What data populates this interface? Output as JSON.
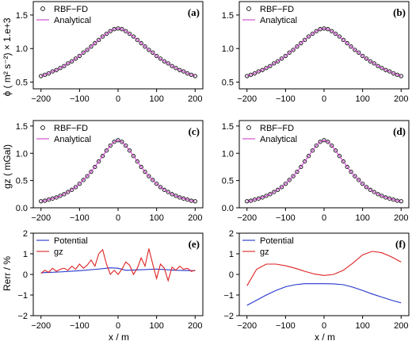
{
  "figure": {
    "ylabel_top": "ϕ ( m² s⁻²) × 1.e+3",
    "ylabel_mid": "gz ( mGal)",
    "ylabel_bottom": "Rerr / %",
    "xlabel": "x / m"
  },
  "colors": {
    "rbf_marker": "#000000",
    "analytical": "#cc44cc",
    "potential": "#2233cc",
    "gz": "#dd2222"
  },
  "chart_data": [
    {
      "id": "a",
      "type": "line",
      "panel_label": "(a)",
      "xlim": [
        -220,
        220
      ],
      "ylim": [
        0.4,
        1.7
      ],
      "xticks": [
        -200,
        -100,
        0,
        100,
        200
      ],
      "yticks": [
        0.5,
        1.0,
        1.5
      ],
      "legend": [
        "RBF−FD",
        "Analytical"
      ],
      "series": [
        {
          "name": "RBF−FD",
          "style": "markers",
          "x": [
            -200,
            -190,
            -180,
            -170,
            -160,
            -150,
            -140,
            -130,
            -120,
            -110,
            -100,
            -90,
            -80,
            -70,
            -60,
            -50,
            -40,
            -30,
            -20,
            -10,
            0,
            10,
            20,
            30,
            40,
            50,
            60,
            70,
            80,
            90,
            100,
            110,
            120,
            130,
            140,
            150,
            160,
            170,
            180,
            190,
            200
          ],
          "y": [
            0.59,
            0.61,
            0.63,
            0.66,
            0.68,
            0.71,
            0.74,
            0.78,
            0.81,
            0.85,
            0.89,
            0.94,
            0.98,
            1.03,
            1.08,
            1.13,
            1.18,
            1.22,
            1.26,
            1.29,
            1.3,
            1.29,
            1.26,
            1.22,
            1.18,
            1.13,
            1.08,
            1.03,
            0.98,
            0.94,
            0.89,
            0.85,
            0.81,
            0.78,
            0.74,
            0.71,
            0.68,
            0.66,
            0.63,
            0.61,
            0.59
          ]
        },
        {
          "name": "Analytical",
          "style": "line",
          "x": [
            -200,
            -190,
            -180,
            -170,
            -160,
            -150,
            -140,
            -130,
            -120,
            -110,
            -100,
            -90,
            -80,
            -70,
            -60,
            -50,
            -40,
            -30,
            -20,
            -10,
            0,
            10,
            20,
            30,
            40,
            50,
            60,
            70,
            80,
            90,
            100,
            110,
            120,
            130,
            140,
            150,
            160,
            170,
            180,
            190,
            200
          ],
          "y": [
            0.59,
            0.61,
            0.63,
            0.66,
            0.68,
            0.71,
            0.74,
            0.78,
            0.81,
            0.85,
            0.89,
            0.94,
            0.98,
            1.03,
            1.08,
            1.13,
            1.18,
            1.22,
            1.26,
            1.29,
            1.3,
            1.29,
            1.26,
            1.22,
            1.18,
            1.13,
            1.08,
            1.03,
            0.98,
            0.94,
            0.89,
            0.85,
            0.81,
            0.78,
            0.74,
            0.71,
            0.68,
            0.66,
            0.63,
            0.61,
            0.59
          ]
        }
      ]
    },
    {
      "id": "b",
      "type": "line",
      "panel_label": "(b)",
      "xlim": [
        -220,
        220
      ],
      "ylim": [
        0.4,
        1.7
      ],
      "xticks": [
        -200,
        -100,
        0,
        100,
        200
      ],
      "yticks": [
        0.5,
        1.0,
        1.5
      ],
      "legend": [
        "RBF−FD",
        "Analytical"
      ],
      "series": [
        {
          "name": "RBF−FD",
          "style": "markers",
          "x": [
            -200,
            -190,
            -180,
            -170,
            -160,
            -150,
            -140,
            -130,
            -120,
            -110,
            -100,
            -90,
            -80,
            -70,
            -60,
            -50,
            -40,
            -30,
            -20,
            -10,
            0,
            10,
            20,
            30,
            40,
            50,
            60,
            70,
            80,
            90,
            100,
            110,
            120,
            130,
            140,
            150,
            160,
            170,
            180,
            190,
            200
          ],
          "y": [
            0.59,
            0.61,
            0.63,
            0.66,
            0.68,
            0.71,
            0.74,
            0.78,
            0.81,
            0.85,
            0.89,
            0.94,
            0.98,
            1.03,
            1.08,
            1.13,
            1.18,
            1.22,
            1.26,
            1.29,
            1.3,
            1.29,
            1.26,
            1.22,
            1.18,
            1.13,
            1.08,
            1.03,
            0.98,
            0.94,
            0.89,
            0.85,
            0.81,
            0.78,
            0.74,
            0.71,
            0.68,
            0.66,
            0.63,
            0.61,
            0.59
          ]
        },
        {
          "name": "Analytical",
          "style": "line",
          "x": [
            -200,
            -190,
            -180,
            -170,
            -160,
            -150,
            -140,
            -130,
            -120,
            -110,
            -100,
            -90,
            -80,
            -70,
            -60,
            -50,
            -40,
            -30,
            -20,
            -10,
            0,
            10,
            20,
            30,
            40,
            50,
            60,
            70,
            80,
            90,
            100,
            110,
            120,
            130,
            140,
            150,
            160,
            170,
            180,
            190,
            200
          ],
          "y": [
            0.59,
            0.61,
            0.63,
            0.66,
            0.68,
            0.71,
            0.74,
            0.78,
            0.81,
            0.85,
            0.89,
            0.94,
            0.98,
            1.03,
            1.08,
            1.13,
            1.18,
            1.22,
            1.26,
            1.29,
            1.3,
            1.29,
            1.26,
            1.22,
            1.18,
            1.13,
            1.08,
            1.03,
            0.98,
            0.94,
            0.89,
            0.85,
            0.81,
            0.78,
            0.74,
            0.71,
            0.68,
            0.66,
            0.63,
            0.61,
            0.59
          ]
        }
      ]
    },
    {
      "id": "c",
      "type": "line",
      "panel_label": "(c)",
      "xlim": [
        -220,
        220
      ],
      "ylim": [
        0.0,
        1.6
      ],
      "xticks": [
        -200,
        -100,
        0,
        100,
        200
      ],
      "yticks": [
        0.0,
        0.5,
        1.0,
        1.5
      ],
      "legend": [
        "RBF−FD",
        "Analytical"
      ],
      "series": [
        {
          "name": "RBF−FD",
          "style": "markers",
          "x": [
            -200,
            -190,
            -180,
            -170,
            -160,
            -150,
            -140,
            -130,
            -120,
            -110,
            -100,
            -90,
            -80,
            -70,
            -60,
            -50,
            -40,
            -30,
            -20,
            -10,
            0,
            10,
            20,
            30,
            40,
            50,
            60,
            70,
            80,
            90,
            100,
            110,
            120,
            130,
            140,
            150,
            160,
            170,
            180,
            190,
            200
          ],
          "y": [
            0.12,
            0.13,
            0.15,
            0.17,
            0.19,
            0.22,
            0.25,
            0.29,
            0.33,
            0.38,
            0.44,
            0.51,
            0.58,
            0.66,
            0.75,
            0.85,
            0.95,
            1.05,
            1.14,
            1.21,
            1.24,
            1.21,
            1.14,
            1.05,
            0.95,
            0.85,
            0.75,
            0.66,
            0.58,
            0.51,
            0.44,
            0.38,
            0.33,
            0.29,
            0.25,
            0.22,
            0.19,
            0.17,
            0.15,
            0.13,
            0.12
          ]
        },
        {
          "name": "Analytical",
          "style": "line",
          "x": [
            -200,
            -190,
            -180,
            -170,
            -160,
            -150,
            -140,
            -130,
            -120,
            -110,
            -100,
            -90,
            -80,
            -70,
            -60,
            -50,
            -40,
            -30,
            -20,
            -10,
            0,
            10,
            20,
            30,
            40,
            50,
            60,
            70,
            80,
            90,
            100,
            110,
            120,
            130,
            140,
            150,
            160,
            170,
            180,
            190,
            200
          ],
          "y": [
            0.12,
            0.13,
            0.15,
            0.17,
            0.19,
            0.22,
            0.25,
            0.29,
            0.33,
            0.38,
            0.44,
            0.51,
            0.58,
            0.66,
            0.75,
            0.85,
            0.95,
            1.05,
            1.14,
            1.21,
            1.24,
            1.21,
            1.14,
            1.05,
            0.95,
            0.85,
            0.75,
            0.66,
            0.58,
            0.51,
            0.44,
            0.38,
            0.33,
            0.29,
            0.25,
            0.22,
            0.19,
            0.17,
            0.15,
            0.13,
            0.12
          ]
        }
      ]
    },
    {
      "id": "d",
      "type": "line",
      "panel_label": "(d)",
      "xlim": [
        -220,
        220
      ],
      "ylim": [
        0.0,
        1.6
      ],
      "xticks": [
        -200,
        -100,
        0,
        100,
        200
      ],
      "yticks": [
        0.0,
        0.5,
        1.0,
        1.5
      ],
      "legend": [
        "RBF−FD",
        "Analytical"
      ],
      "series": [
        {
          "name": "RBF−FD",
          "style": "markers",
          "x": [
            -200,
            -190,
            -180,
            -170,
            -160,
            -150,
            -140,
            -130,
            -120,
            -110,
            -100,
            -90,
            -80,
            -70,
            -60,
            -50,
            -40,
            -30,
            -20,
            -10,
            0,
            10,
            20,
            30,
            40,
            50,
            60,
            70,
            80,
            90,
            100,
            110,
            120,
            130,
            140,
            150,
            160,
            170,
            180,
            190,
            200
          ],
          "y": [
            0.12,
            0.13,
            0.15,
            0.17,
            0.19,
            0.22,
            0.25,
            0.29,
            0.33,
            0.38,
            0.44,
            0.51,
            0.58,
            0.66,
            0.75,
            0.85,
            0.95,
            1.05,
            1.14,
            1.21,
            1.24,
            1.21,
            1.14,
            1.05,
            0.95,
            0.85,
            0.75,
            0.66,
            0.58,
            0.51,
            0.44,
            0.38,
            0.33,
            0.29,
            0.25,
            0.22,
            0.19,
            0.17,
            0.15,
            0.13,
            0.12
          ]
        },
        {
          "name": "Analytical",
          "style": "line",
          "x": [
            -200,
            -190,
            -180,
            -170,
            -160,
            -150,
            -140,
            -130,
            -120,
            -110,
            -100,
            -90,
            -80,
            -70,
            -60,
            -50,
            -40,
            -30,
            -20,
            -10,
            0,
            10,
            20,
            30,
            40,
            50,
            60,
            70,
            80,
            90,
            100,
            110,
            120,
            130,
            140,
            150,
            160,
            170,
            180,
            190,
            200
          ],
          "y": [
            0.12,
            0.13,
            0.15,
            0.17,
            0.19,
            0.22,
            0.25,
            0.29,
            0.33,
            0.38,
            0.44,
            0.51,
            0.58,
            0.66,
            0.75,
            0.85,
            0.95,
            1.05,
            1.14,
            1.21,
            1.24,
            1.21,
            1.14,
            1.05,
            0.95,
            0.85,
            0.75,
            0.66,
            0.58,
            0.51,
            0.44,
            0.38,
            0.33,
            0.29,
            0.25,
            0.22,
            0.19,
            0.17,
            0.15,
            0.13,
            0.12
          ]
        }
      ]
    },
    {
      "id": "e",
      "type": "line",
      "panel_label": "(e)",
      "xlim": [
        -220,
        220
      ],
      "ylim": [
        -2,
        2
      ],
      "xticks": [
        -200,
        -100,
        0,
        100,
        200
      ],
      "yticks": [
        -2,
        -1,
        0,
        1,
        2
      ],
      "legend": [
        "Potential",
        "gz"
      ],
      "series": [
        {
          "name": "Potential",
          "style": "line",
          "x": [
            -200,
            -150,
            -100,
            -50,
            -20,
            0,
            20,
            50,
            100,
            150,
            200
          ],
          "y": [
            0.08,
            0.12,
            0.18,
            0.26,
            0.32,
            0.3,
            0.2,
            0.22,
            0.26,
            0.2,
            0.18
          ]
        },
        {
          "name": "gz",
          "style": "line",
          "x": [
            -200,
            -190,
            -180,
            -170,
            -160,
            -150,
            -140,
            -130,
            -120,
            -110,
            -100,
            -90,
            -80,
            -70,
            -60,
            -50,
            -40,
            -30,
            -20,
            -10,
            0,
            10,
            20,
            30,
            40,
            50,
            60,
            70,
            80,
            90,
            100,
            110,
            120,
            130,
            140,
            150,
            160,
            170,
            180,
            190,
            200
          ],
          "y": [
            0.05,
            0.2,
            0.1,
            0.3,
            0.15,
            0.25,
            0.3,
            0.2,
            0.4,
            0.25,
            0.5,
            0.3,
            0.45,
            0.7,
            0.4,
            1.0,
            1.2,
            0.5,
            0.0,
            0.2,
            0.0,
            0.25,
            0.6,
            0.45,
            0.0,
            0.3,
            0.8,
            0.4,
            1.25,
            0.5,
            -0.2,
            0.5,
            0.3,
            -0.3,
            0.35,
            0.2,
            0.4,
            0.25,
            0.3,
            0.15,
            0.2
          ]
        }
      ]
    },
    {
      "id": "f",
      "type": "line",
      "panel_label": "(f)",
      "xlim": [
        -220,
        220
      ],
      "ylim": [
        -2,
        2
      ],
      "xticks": [
        -200,
        -100,
        0,
        100,
        200
      ],
      "yticks": [
        -2,
        -1,
        0,
        1,
        2
      ],
      "legend": [
        "Potential",
        "gz"
      ],
      "series": [
        {
          "name": "Potential",
          "style": "line",
          "x": [
            -200,
            -175,
            -150,
            -125,
            -100,
            -75,
            -50,
            -25,
            0,
            25,
            50,
            75,
            100,
            125,
            150,
            175,
            200
          ],
          "y": [
            -1.5,
            -1.25,
            -1.0,
            -0.78,
            -0.6,
            -0.5,
            -0.45,
            -0.45,
            -0.45,
            -0.46,
            -0.5,
            -0.62,
            -0.78,
            -0.95,
            -1.1,
            -1.25,
            -1.38
          ]
        },
        {
          "name": "gz",
          "style": "line",
          "x": [
            -200,
            -175,
            -150,
            -125,
            -100,
            -75,
            -50,
            -25,
            0,
            25,
            50,
            75,
            100,
            125,
            150,
            175,
            200
          ],
          "y": [
            -0.55,
            0.25,
            0.5,
            0.5,
            0.42,
            0.3,
            0.15,
            0.02,
            -0.05,
            0.0,
            0.2,
            0.55,
            0.95,
            1.12,
            1.05,
            0.85,
            0.6
          ]
        }
      ]
    }
  ]
}
